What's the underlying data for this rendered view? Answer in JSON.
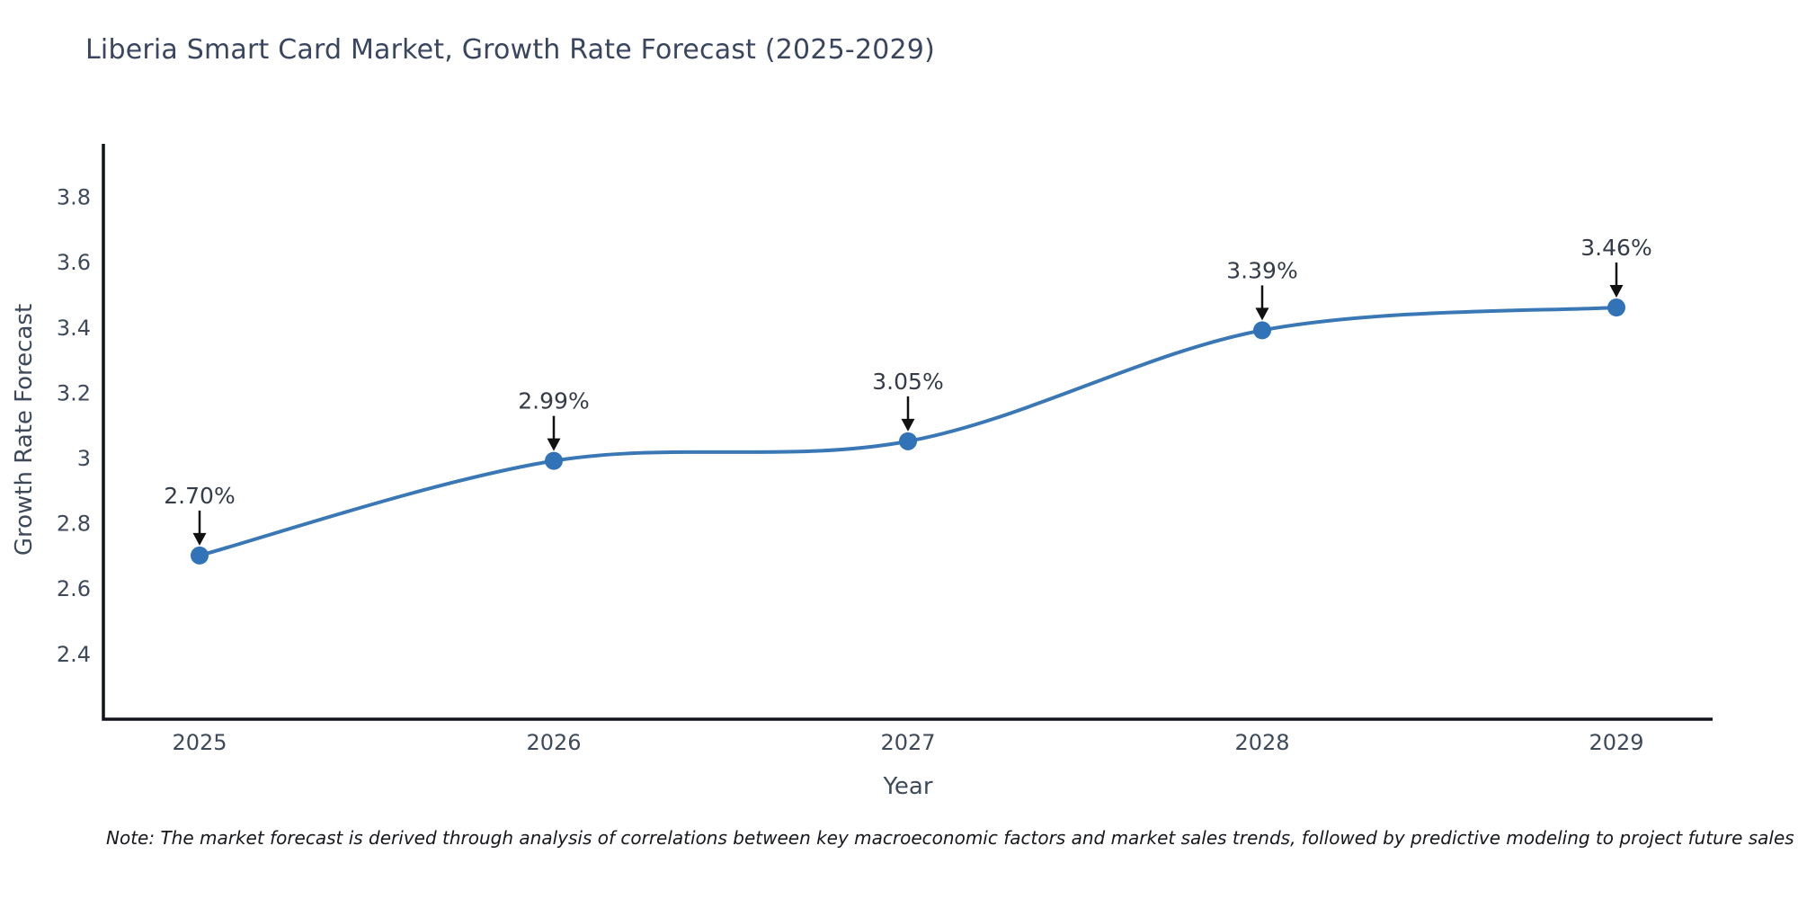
{
  "chart_data": {
    "type": "line",
    "title": "Liberia Smart Card Market, Growth Rate Forecast (2025-2029)",
    "xlabel": "Year",
    "ylabel": "Growth Rate Forecast",
    "categories": [
      "2025",
      "2026",
      "2027",
      "2028",
      "2029"
    ],
    "values": [
      2.7,
      2.99,
      3.05,
      3.39,
      3.46
    ],
    "point_labels": [
      "2.70%",
      "2.99%",
      "3.05%",
      "3.39%",
      "3.46%"
    ],
    "ytick_values": [
      3.8,
      3.6,
      3.4,
      3.2,
      3,
      2.8,
      2.6,
      2.4
    ],
    "ytick_labels": [
      "3.8",
      "3.6",
      "3.4",
      "3.2",
      "3",
      "2.8",
      "2.6",
      "2.4"
    ],
    "ylim": [
      2.2,
      3.95
    ],
    "grid": false,
    "legend": "none",
    "line_shape": "spline",
    "colors": {
      "line": "#3a78b5",
      "marker": "#3273b8",
      "axis": "#11131a",
      "tick_text": "#3e4a5a",
      "annotation_text": "#343c48",
      "arrow": "#111111"
    }
  },
  "note": "Note: The market forecast is derived through analysis of correlations between key macroeconomic factors and market sales trends, followed by predictive modeling to project future sales"
}
